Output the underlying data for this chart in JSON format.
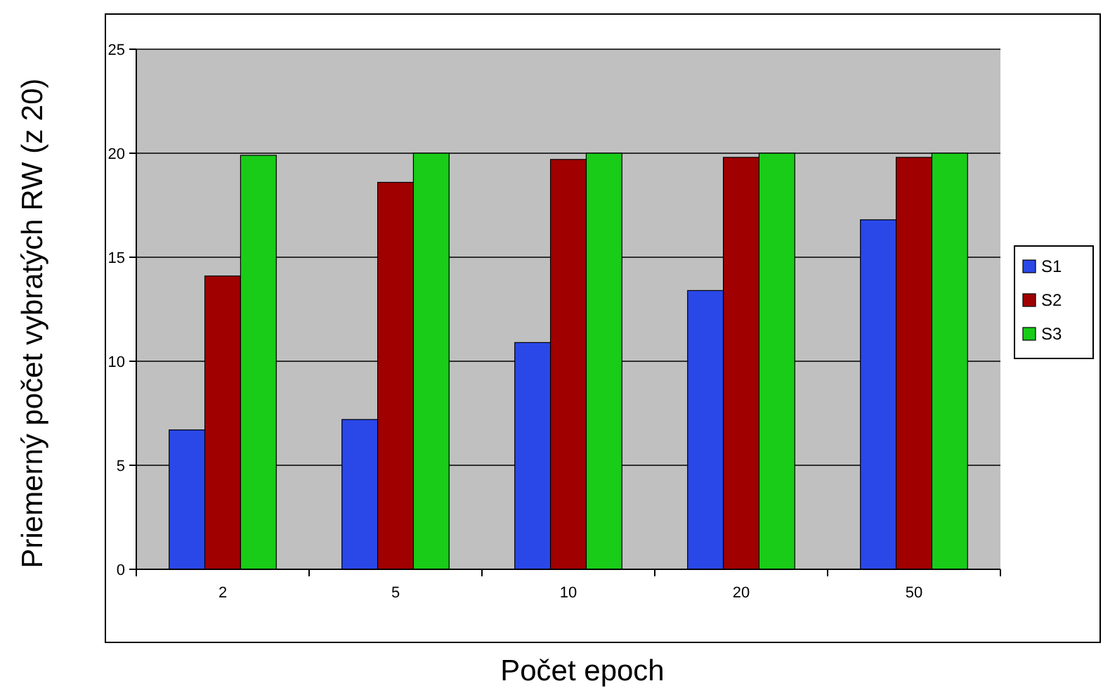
{
  "chart_data": {
    "type": "bar",
    "xlabel": "Počet epoch",
    "ylabel": "Priemerný počet vybratých RW (z 20)",
    "categories": [
      "2",
      "5",
      "10",
      "20",
      "50"
    ],
    "series": [
      {
        "name": "S1",
        "color": "#2a48e8",
        "values": [
          6.7,
          7.2,
          10.9,
          13.4,
          16.8
        ]
      },
      {
        "name": "S2",
        "color": "#a00000",
        "values": [
          14.1,
          18.6,
          19.7,
          19.8,
          19.8
        ]
      },
      {
        "name": "S3",
        "color": "#18cc18",
        "values": [
          19.9,
          20,
          20,
          20,
          20
        ]
      }
    ],
    "ylim": [
      0,
      25
    ],
    "yticks": [
      0,
      5,
      10,
      15,
      20,
      25
    ],
    "grid": "y",
    "legend": "right"
  }
}
